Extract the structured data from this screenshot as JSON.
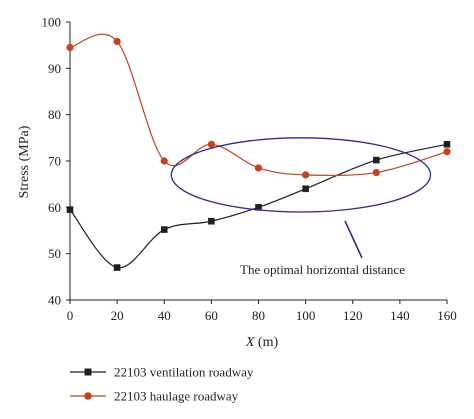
{
  "chart_data": {
    "type": "line",
    "xlabel_var": "X",
    "xlabel_unit": " (m)",
    "ylabel": "Stress (MPa)",
    "xlim": [
      0,
      160
    ],
    "ylim": [
      40,
      100
    ],
    "xticks": [
      0,
      20,
      40,
      60,
      80,
      100,
      120,
      140,
      160
    ],
    "yticks": [
      40,
      50,
      60,
      70,
      80,
      90,
      100
    ],
    "grid": false,
    "legend_position": "bottom-left",
    "series": [
      {
        "name": "22103 ventilation roadway",
        "color": "#231f20",
        "marker": "square",
        "x": [
          0,
          20,
          40,
          60,
          80,
          100,
          130,
          160
        ],
        "y": [
          59.5,
          47,
          55.2,
          57,
          60,
          64,
          70.2,
          73.6
        ]
      },
      {
        "name": "22103 haulage roadway",
        "color": "#c8411b",
        "marker": "circle",
        "x": [
          0,
          20,
          40,
          60,
          80,
          100,
          130,
          160
        ],
        "y": [
          94.5,
          95.8,
          70,
          73.6,
          68.5,
          67,
          67.5,
          72
        ]
      }
    ],
    "annotation": {
      "text": "The optimal horizontal distance",
      "shape": "ellipse",
      "color": "#2b2f8f",
      "center": [
        98,
        67
      ],
      "half_width_x": 55,
      "half_height_y": 8
    }
  }
}
